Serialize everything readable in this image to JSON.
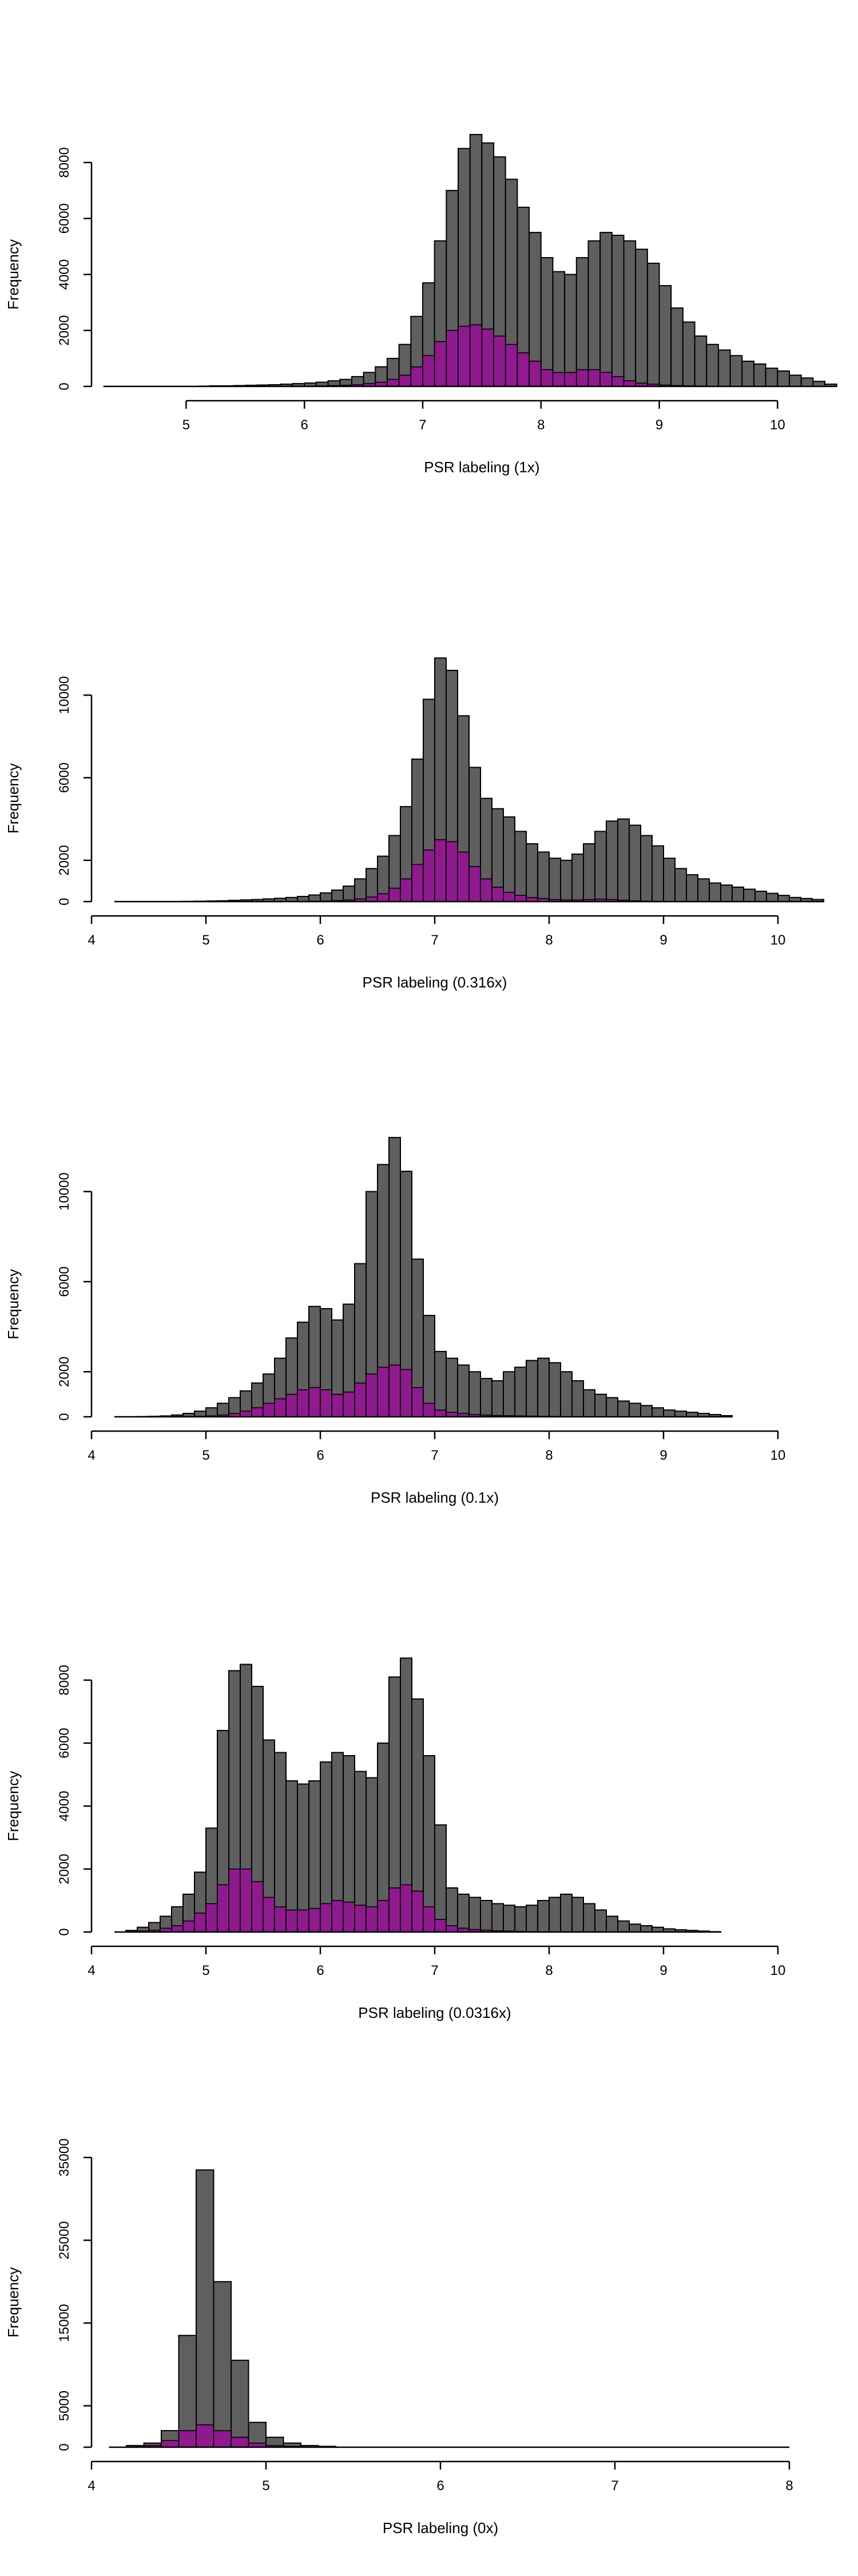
{
  "colors": {
    "all_bars": "#5f5f5f",
    "subset_bars": "#8e1a8e",
    "outline": "#000000"
  },
  "chart_data": [
    {
      "type": "bar",
      "xlabel": "PSR labeling (1x)",
      "ylabel": "Frequency",
      "xticks": [
        5,
        6,
        7,
        8,
        9,
        10
      ],
      "yticks": [
        0,
        2000,
        4000,
        6000,
        8000
      ],
      "xlim": [
        4.2,
        10.1
      ],
      "ylim": [
        0,
        9000
      ],
      "x_start": 4.3,
      "bin_width": 0.1,
      "series": [
        {
          "values": [
            0,
            0,
            0,
            0,
            0,
            0,
            0,
            0,
            10,
            20,
            20,
            30,
            40,
            50,
            60,
            80,
            100,
            120,
            150,
            200,
            250,
            350,
            500,
            700,
            1000,
            1500,
            2500,
            3700,
            5200,
            7000,
            8500,
            9000,
            8700,
            8200,
            7400,
            6400,
            5500,
            4600,
            4100,
            4000,
            4600,
            5200,
            5500,
            5400,
            5200,
            4900,
            4400,
            3600,
            2800,
            2300,
            1800,
            1500,
            1300,
            1100,
            900,
            800,
            650,
            550,
            400,
            300,
            180,
            80
          ]
        },
        {
          "values": [
            0,
            0,
            0,
            0,
            0,
            0,
            0,
            0,
            0,
            0,
            0,
            0,
            0,
            0,
            0,
            0,
            0,
            10,
            20,
            30,
            40,
            60,
            100,
            150,
            250,
            400,
            700,
            1100,
            1600,
            2000,
            2150,
            2200,
            2050,
            1800,
            1500,
            1200,
            900,
            600,
            500,
            500,
            600,
            600,
            500,
            350,
            200,
            120,
            80,
            50,
            30,
            20,
            10,
            0,
            0,
            0,
            0,
            0,
            0,
            0,
            0,
            0,
            0,
            0
          ]
        }
      ]
    },
    {
      "type": "bar",
      "xlabel": "PSR labeling (0.316x)",
      "ylabel": "Frequency",
      "xticks": [
        4,
        5,
        6,
        7,
        8,
        9,
        10
      ],
      "yticks": [
        0,
        2000,
        6000,
        10000
      ],
      "xlim": [
        4,
        10.1
      ],
      "ylim": [
        0,
        12200
      ],
      "x_start": 4.2,
      "bin_width": 0.1,
      "series": [
        {
          "values": [
            0,
            0,
            0,
            0,
            0,
            0,
            10,
            20,
            30,
            40,
            60,
            80,
            100,
            130,
            160,
            200,
            250,
            320,
            420,
            560,
            750,
            1100,
            1600,
            2200,
            3200,
            4600,
            6900,
            9800,
            11800,
            11200,
            9000,
            6500,
            5000,
            4500,
            4100,
            3400,
            2800,
            2400,
            2100,
            2000,
            2300,
            2800,
            3400,
            3900,
            4000,
            3700,
            3200,
            2700,
            2100,
            1600,
            1300,
            1100,
            900,
            800,
            700,
            600,
            500,
            400,
            300,
            200,
            150,
            100
          ]
        },
        {
          "values": [
            0,
            0,
            0,
            0,
            0,
            0,
            0,
            0,
            0,
            0,
            0,
            0,
            0,
            0,
            0,
            0,
            10,
            20,
            30,
            50,
            80,
            130,
            220,
            380,
            650,
            1100,
            1800,
            2500,
            3000,
            2900,
            2400,
            1700,
            1100,
            700,
            450,
            300,
            200,
            150,
            100,
            80,
            80,
            100,
            120,
            100,
            70,
            40,
            20,
            10,
            0,
            0,
            0,
            0,
            0,
            0,
            0,
            0,
            0,
            0,
            0,
            0,
            0,
            0
          ]
        }
      ]
    },
    {
      "type": "bar",
      "xlabel": "PSR labeling (0.1x)",
      "ylabel": "Frequency",
      "xticks": [
        4,
        5,
        6,
        7,
        8,
        9,
        10
      ],
      "yticks": [
        0,
        2000,
        6000,
        10000
      ],
      "xlim": [
        4,
        10.1
      ],
      "ylim": [
        0,
        12200
      ],
      "x_start": 4.2,
      "bin_width": 0.1,
      "series": [
        {
          "values": [
            0,
            0,
            10,
            20,
            40,
            80,
            150,
            250,
            400,
            600,
            850,
            1150,
            1500,
            1900,
            2600,
            3500,
            4200,
            4900,
            4800,
            4300,
            5000,
            6800,
            10000,
            11200,
            12400,
            10900,
            7000,
            4500,
            2900,
            2600,
            2300,
            2000,
            1700,
            1600,
            2000,
            2200,
            2500,
            2600,
            2400,
            2000,
            1600,
            1200,
            1000,
            850,
            700,
            600,
            500,
            400,
            300,
            250,
            200,
            150,
            100,
            50
          ]
        },
        {
          "values": [
            0,
            0,
            0,
            0,
            0,
            0,
            10,
            20,
            40,
            80,
            150,
            250,
            400,
            600,
            800,
            1000,
            1200,
            1300,
            1200,
            1000,
            1100,
            1500,
            1900,
            2200,
            2300,
            2100,
            1300,
            600,
            300,
            200,
            150,
            100,
            80,
            60,
            50,
            40,
            30,
            20,
            10,
            0,
            0,
            0,
            0,
            0,
            0,
            0,
            0,
            0,
            0,
            0,
            0,
            0,
            0,
            0
          ]
        }
      ]
    },
    {
      "type": "bar",
      "xlabel": "PSR labeling (0.0316x)",
      "ylabel": "Frequency",
      "xticks": [
        4,
        5,
        6,
        7,
        8,
        9,
        10
      ],
      "yticks": [
        0,
        2000,
        4000,
        6000,
        8000
      ],
      "xlim": [
        4,
        10.1
      ],
      "ylim": [
        0,
        9000
      ],
      "x_start": 4.2,
      "bin_width": 0.1,
      "series": [
        {
          "values": [
            0,
            50,
            150,
            300,
            500,
            800,
            1200,
            1900,
            3300,
            6400,
            8300,
            8500,
            7800,
            6100,
            5700,
            4800,
            4700,
            4800,
            5400,
            5700,
            5600,
            5100,
            4900,
            6000,
            8100,
            8700,
            7400,
            5600,
            3400,
            1400,
            1200,
            1100,
            1000,
            900,
            850,
            800,
            850,
            1000,
            1100,
            1200,
            1100,
            900,
            700,
            500,
            350,
            250,
            200,
            150,
            100,
            70,
            50,
            30,
            10
          ]
        },
        {
          "values": [
            0,
            10,
            30,
            60,
            120,
            200,
            350,
            600,
            900,
            1500,
            2000,
            2000,
            1600,
            1100,
            800,
            700,
            700,
            750,
            900,
            1000,
            950,
            850,
            800,
            1000,
            1400,
            1500,
            1300,
            800,
            400,
            200,
            120,
            80,
            60,
            40,
            30,
            20,
            10,
            0,
            0,
            0,
            0,
            0,
            0,
            0,
            0,
            0,
            0,
            0,
            0,
            0,
            0,
            0,
            0
          ]
        }
      ]
    },
    {
      "type": "bar",
      "xlabel": "PSR labeling (0x)",
      "ylabel": "Frequency",
      "xticks": [
        4,
        5,
        6,
        7,
        8
      ],
      "yticks": [
        0,
        5000,
        15000,
        25000,
        35000
      ],
      "xlim": [
        4,
        8
      ],
      "ylim": [
        0,
        37000
      ],
      "x_start": 4.1,
      "bin_width": 0.1,
      "series": [
        {
          "values": [
            0,
            200,
            500,
            2000,
            13500,
            33500,
            20000,
            10500,
            3000,
            1200,
            500,
            200,
            100,
            0,
            0,
            0,
            0,
            0,
            0,
            0,
            0,
            0,
            0,
            0,
            0,
            0,
            0,
            0,
            0,
            0,
            0,
            0,
            0,
            0,
            0,
            0,
            0,
            0,
            0
          ]
        },
        {
          "values": [
            0,
            50,
            200,
            800,
            2000,
            2700,
            2000,
            1200,
            500,
            200,
            100,
            30,
            10,
            0,
            0,
            0,
            0,
            0,
            0,
            0,
            0,
            0,
            0,
            0,
            0,
            0,
            0,
            0,
            0,
            0,
            0,
            0,
            0,
            0,
            0,
            0,
            0,
            0,
            0,
            0
          ]
        }
      ]
    }
  ]
}
